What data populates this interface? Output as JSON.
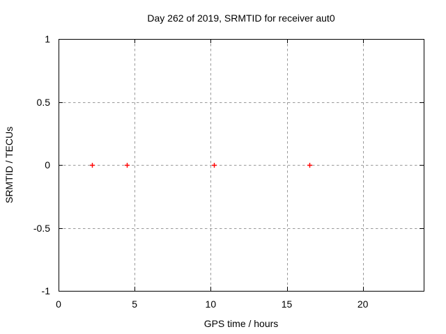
{
  "page": {
    "background": "#ffffff"
  },
  "chart_data": {
    "type": "scatter",
    "title": "Day 262 of 2019, SRMTID for receiver aut0",
    "xlabel": "GPS time / hours",
    "ylabel": "SRMTID / TECUs",
    "xlim": [
      0,
      24
    ],
    "ylim": [
      -1,
      1
    ],
    "x_ticks": [
      0,
      5,
      10,
      15,
      20
    ],
    "x_tick_labels": [
      "0",
      "5",
      "10",
      "15",
      "20"
    ],
    "y_ticks": [
      1,
      0.5,
      0,
      -0.5,
      -1
    ],
    "y_tick_labels": [
      "1",
      "0.5",
      "0",
      "-0.5",
      "-1"
    ],
    "grid": true,
    "legend_position": "none",
    "series": [
      {
        "name": "SRMTID",
        "marker": "plus",
        "color": "#ff0000",
        "x": [
          2.2,
          4.5,
          10.2,
          16.5
        ],
        "y": [
          0,
          0,
          0,
          0
        ]
      }
    ],
    "style": {
      "background": "#ffffff",
      "border_color": "#000000",
      "grid_color": "#999999",
      "text_color": "#000000"
    }
  }
}
